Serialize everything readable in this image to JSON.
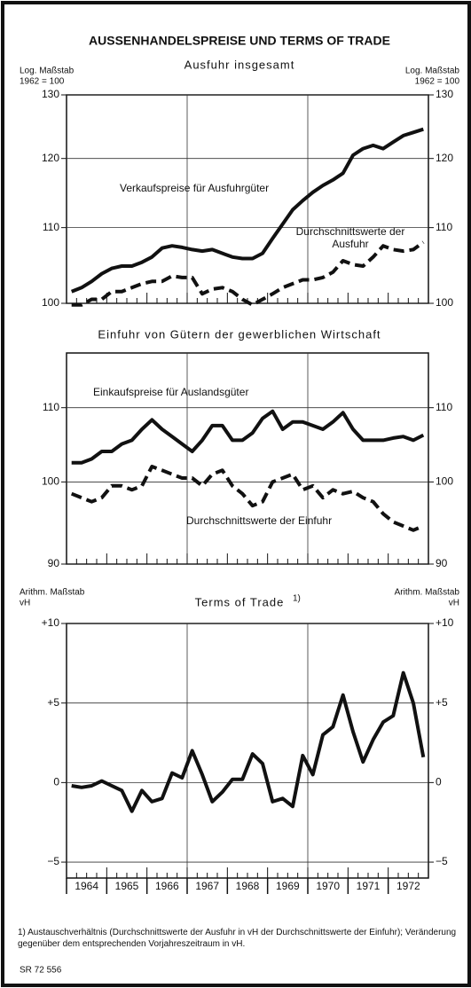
{
  "title": "AUSSENHANDELSPREISE UND TERMS OF TRADE",
  "footnote": "1) Austauschverhältnis (Durchschnittswerte der Ausfuhr in vH der Durchschnittswerte der Einfuhr); Veränderung gegenüber dem entsprechenden Vorjahreszeitraum in vH.",
  "source": "SR 72 556",
  "chart_data": [
    {
      "type": "line",
      "title": "Ausfuhr insgesamt",
      "axis_note": [
        "Log. Maßstab",
        "1962 = 100"
      ],
      "log": true,
      "grid": true,
      "ylim": [
        100,
        130
      ],
      "yticks": [
        100,
        110,
        120,
        130
      ],
      "xlim": [
        1964,
        1973
      ],
      "x": [
        1964.125,
        1964.375,
        1964.625,
        1964.875,
        1965.125,
        1965.375,
        1965.625,
        1965.875,
        1966.125,
        1966.375,
        1966.625,
        1966.875,
        1967.125,
        1967.375,
        1967.625,
        1967.875,
        1968.125,
        1968.375,
        1968.625,
        1968.875,
        1969.125,
        1969.375,
        1969.625,
        1969.875,
        1970.125,
        1970.375,
        1970.625,
        1970.875,
        1971.125,
        1971.375,
        1971.625,
        1971.875,
        1972.125,
        1972.375,
        1972.625,
        1972.875
      ],
      "series": [
        {
          "name": "Verkaufspreise für Ausfuhrgüter",
          "color": "#111",
          "dashed": false,
          "values": [
            101.5,
            102,
            102.8,
            103.8,
            104.5,
            104.8,
            104.8,
            105.3,
            106,
            107.2,
            107.5,
            107.3,
            107,
            106.8,
            107,
            106.5,
            106,
            105.8,
            105.8,
            106.5,
            108.5,
            110.5,
            112.5,
            113.8,
            115,
            116,
            116.8,
            117.8,
            120.5,
            121.5,
            122,
            121.5,
            122.5,
            123.5,
            124,
            124.5
          ]
        },
        {
          "name": "Durchschnittswerte der Ausfuhr",
          "color": "#111",
          "dashed": true,
          "values": [
            99.8,
            99.8,
            100.5,
            100.5,
            101.5,
            101.5,
            102,
            102.5,
            102.8,
            102.8,
            103.5,
            103.3,
            103.3,
            101.2,
            101.8,
            102,
            101.5,
            100.5,
            99.8,
            100.5,
            101.2,
            102,
            102.5,
            103,
            103,
            103.3,
            104,
            105.5,
            105,
            104.8,
            106,
            107.5,
            107,
            106.8,
            107,
            108
          ]
        }
      ]
    },
    {
      "type": "line",
      "title": "Einfuhr von Gütern der gewerblichen Wirtschaft",
      "log": true,
      "grid": true,
      "ylim": [
        90,
        118
      ],
      "yticks": [
        90,
        100,
        110
      ],
      "xlim": [
        1964,
        1973
      ],
      "x": [
        1964.125,
        1964.375,
        1964.625,
        1964.875,
        1965.125,
        1965.375,
        1965.625,
        1965.875,
        1966.125,
        1966.375,
        1966.625,
        1966.875,
        1967.125,
        1967.375,
        1967.625,
        1967.875,
        1968.125,
        1968.375,
        1968.625,
        1968.875,
        1969.125,
        1969.375,
        1969.625,
        1969.875,
        1970.125,
        1970.375,
        1970.625,
        1970.875,
        1971.125,
        1971.375,
        1971.625,
        1971.875,
        1972.125,
        1972.375,
        1972.625,
        1972.875
      ],
      "series": [
        {
          "name": "Einkaufspreise für Auslandsgüter",
          "color": "#111",
          "dashed": false,
          "values": [
            102.5,
            102.5,
            103,
            104,
            104,
            105,
            105.5,
            107,
            108.3,
            107,
            106,
            105,
            104,
            105.5,
            107.5,
            107.5,
            105.5,
            105.5,
            106.5,
            108.5,
            109.5,
            107,
            108,
            108,
            107.5,
            107,
            108,
            109.3,
            107,
            105.5,
            105.5,
            105.5,
            105.8,
            106,
            105.5,
            106.2
          ]
        },
        {
          "name": "Durchschnittswerte der Einfuhr",
          "color": "#111",
          "dashed": true,
          "values": [
            98.5,
            98,
            97.5,
            98,
            99.5,
            99.5,
            99,
            99.5,
            102,
            101.5,
            101,
            100.5,
            100.5,
            99.5,
            101,
            101.5,
            99.5,
            98.5,
            97,
            97.5,
            100,
            100.5,
            101,
            99,
            99.5,
            98,
            99,
            98.5,
            98.8,
            98,
            97.5,
            96,
            95,
            94.5,
            94,
            94.5
          ]
        }
      ]
    },
    {
      "type": "line",
      "title": "Terms of Trade",
      "title_note": "1)",
      "axis_note": [
        "Arithm. Maßstab",
        "vH"
      ],
      "log": false,
      "grid": true,
      "ylim": [
        -6,
        10
      ],
      "yticks": [
        {
          "value": 10,
          "label": "+10"
        },
        {
          "value": 5,
          "label": "+5"
        },
        0,
        {
          "value": -5,
          "label": "−5"
        }
      ],
      "xlim": [
        1964,
        1973
      ],
      "categories": [
        "1964",
        "1965",
        "1966",
        "1967",
        "1968",
        "1969",
        "1970",
        "1971",
        "1972"
      ],
      "x": [
        1964.125,
        1964.375,
        1964.625,
        1964.875,
        1965.125,
        1965.375,
        1965.625,
        1965.875,
        1966.125,
        1966.375,
        1966.625,
        1966.875,
        1967.125,
        1967.375,
        1967.625,
        1967.875,
        1968.125,
        1968.375,
        1968.625,
        1968.875,
        1969.125,
        1969.375,
        1969.625,
        1969.875,
        1970.125,
        1970.375,
        1970.625,
        1970.875,
        1971.125,
        1971.375,
        1971.625,
        1971.875,
        1972.125,
        1972.375,
        1972.625,
        1972.875
      ],
      "series": [
        {
          "name": null,
          "color": "#111",
          "dashed": false,
          "values": [
            -0.2,
            -0.3,
            -0.2,
            0.1,
            -0.2,
            -0.5,
            -1.8,
            -0.5,
            -1.2,
            -1,
            0.6,
            0.3,
            2.0,
            0.5,
            -1.2,
            -0.6,
            0.2,
            0.2,
            1.8,
            1.2,
            -1.2,
            -1.0,
            -1.5,
            1.7,
            0.5,
            3,
            3.5,
            5.5,
            3.2,
            1.3,
            2.7,
            3.8,
            4.2,
            6.9,
            5,
            1.6
          ]
        }
      ]
    }
  ]
}
